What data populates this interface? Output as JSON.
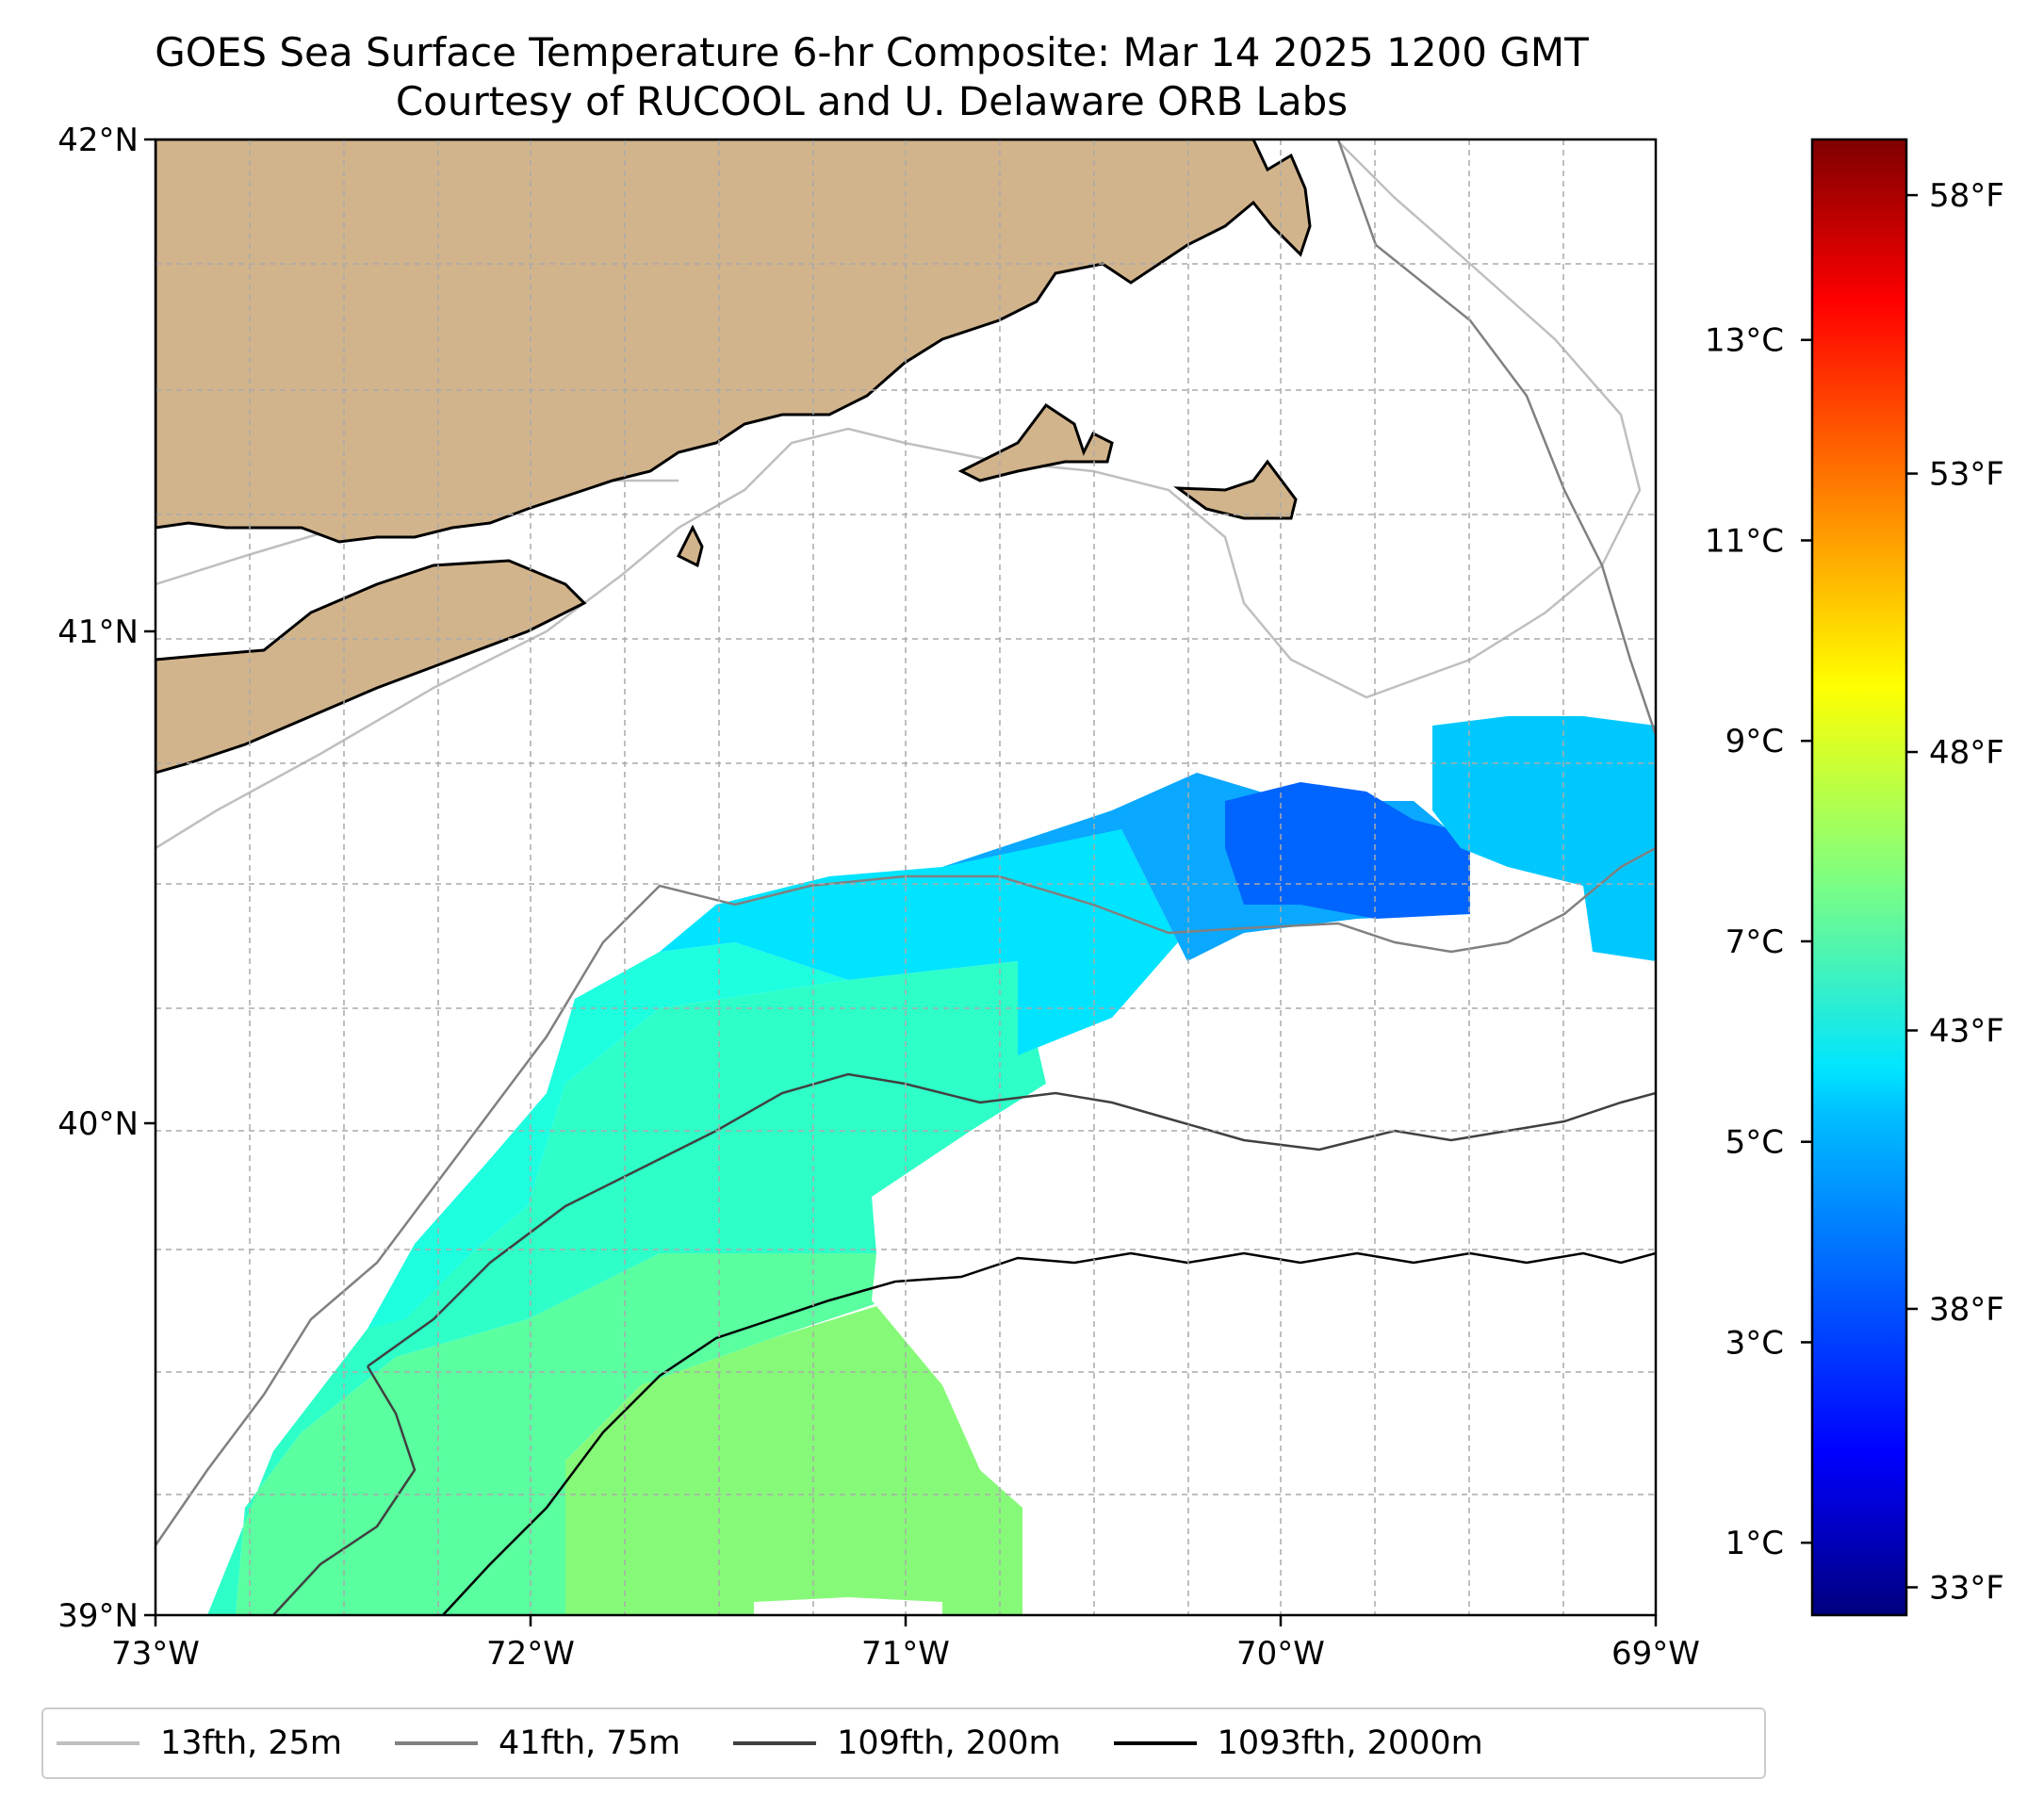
{
  "title_line1": "GOES Sea Surface Temperature 6-hr Composite: Mar 14 2025 1200 GMT",
  "title_line2": "Courtesy of RUCOOL and U. Delaware ORB Labs",
  "map": {
    "x_ticks": [
      {
        "value": -73,
        "label": "73°W"
      },
      {
        "value": -72,
        "label": "72°W"
      },
      {
        "value": -71,
        "label": "71°W"
      },
      {
        "value": -70,
        "label": "70°W"
      },
      {
        "value": -69,
        "label": "69°W"
      }
    ],
    "y_ticks": [
      {
        "value": 42,
        "label": "42°N"
      },
      {
        "value": 41,
        "label": "41°N"
      },
      {
        "value": 40,
        "label": "40°N"
      },
      {
        "value": 39,
        "label": "39°N"
      }
    ],
    "xlim": [
      -73,
      -69
    ],
    "ylim": [
      39,
      42
    ],
    "gridlines": true,
    "land_color": "#d2b48c"
  },
  "colorbar": {
    "celsius_ticks": [
      {
        "value": 1,
        "label": "1°C"
      },
      {
        "value": 3,
        "label": "3°C"
      },
      {
        "value": 5,
        "label": "5°C"
      },
      {
        "value": 7,
        "label": "7°C"
      },
      {
        "value": 9,
        "label": "9°C"
      },
      {
        "value": 11,
        "label": "11°C"
      },
      {
        "value": 13,
        "label": "13°C"
      }
    ],
    "fahrenheit_ticks": [
      {
        "value": 33,
        "label": "33°F"
      },
      {
        "value": 38,
        "label": "38°F"
      },
      {
        "value": 43,
        "label": "43°F"
      },
      {
        "value": 48,
        "label": "48°F"
      },
      {
        "value": 53,
        "label": "53°F"
      },
      {
        "value": 58,
        "label": "58°F"
      }
    ],
    "range_f": [
      32.5,
      59
    ],
    "colormap": "jet"
  },
  "legend": [
    {
      "label": "13fth, 25m",
      "color": "#bfbfbf"
    },
    {
      "label": "41fth, 75m",
      "color": "#808080"
    },
    {
      "label": "109fth, 200m",
      "color": "#404040"
    },
    {
      "label": "1093fth, 2000m",
      "color": "#000000"
    }
  ]
}
